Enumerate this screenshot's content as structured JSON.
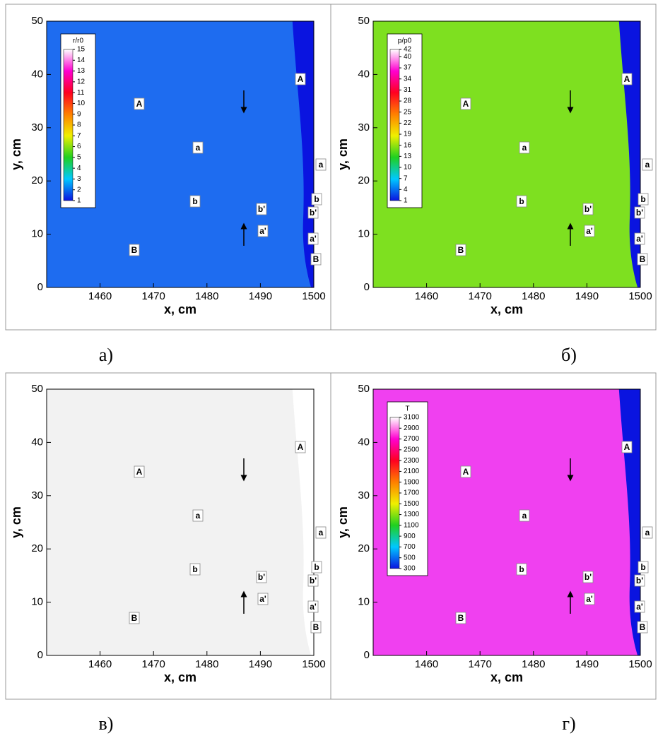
{
  "chart_data": [
    {
      "type": "field",
      "panel_label": "а)",
      "xlabel": "x, cm",
      "ylabel": "y, cm",
      "xlim": [
        1450,
        1500
      ],
      "xticks": [
        1460,
        1470,
        1480,
        1490,
        1500
      ],
      "ylim": [
        0,
        50
      ],
      "yticks": [
        0,
        10,
        20,
        30,
        40,
        50
      ],
      "field_color": "#1e6cf0",
      "boundary_color": "#0a14e0",
      "colorbar": {
        "title": "r/r0",
        "clim": [
          1,
          15
        ],
        "ticks": [
          1,
          2,
          3,
          4,
          5,
          6,
          7,
          8,
          9,
          10,
          11,
          12,
          13,
          14,
          15
        ],
        "colors": [
          "#0a14e0",
          "#00c8ff",
          "#20d020",
          "#f0f000",
          "#ff8000",
          "#ff0020",
          "#ff00d0",
          "#ffffff"
        ]
      },
      "annotations": [
        "A",
        "a",
        "b",
        "b'",
        "a'",
        "B",
        "A",
        "a",
        "b",
        "b'",
        "a'",
        "B"
      ]
    },
    {
      "type": "field",
      "panel_label": "б)",
      "xlabel": "x, cm",
      "ylabel": "y, cm",
      "xlim": [
        1450,
        1500
      ],
      "xticks": [
        1460,
        1470,
        1480,
        1490,
        1500
      ],
      "ylim": [
        0,
        50
      ],
      "yticks": [
        0,
        10,
        20,
        30,
        40,
        50
      ],
      "field_color": "#7ee020",
      "boundary_color": "#0a14e0",
      "colorbar": {
        "title": "p/p0",
        "clim": [
          1,
          42
        ],
        "ticks": [
          1,
          4,
          7,
          10,
          13,
          16,
          19,
          22,
          25,
          28,
          31,
          34,
          37,
          40,
          42
        ],
        "colors": [
          "#0a14e0",
          "#00c8ff",
          "#20d020",
          "#f0f000",
          "#ff8000",
          "#ff0020",
          "#ff00d0",
          "#ffffff"
        ]
      },
      "annotations": [
        "A",
        "a",
        "b",
        "b'",
        "a'",
        "B",
        "A",
        "a",
        "b",
        "b'",
        "a'",
        "B"
      ]
    },
    {
      "type": "field",
      "panel_label": "в)",
      "xlabel": "x, cm",
      "ylabel": "y, cm",
      "xlim": [
        1450,
        1500
      ],
      "xticks": [
        1460,
        1470,
        1480,
        1490,
        1500
      ],
      "ylim": [
        0,
        50
      ],
      "yticks": [
        0,
        10,
        20,
        30,
        40,
        50
      ],
      "field_color": "#f2f2f2",
      "boundary_color": "#ffffff",
      "annotations": [
        "A",
        "a",
        "b",
        "b'",
        "a'",
        "B",
        "A",
        "a",
        "b",
        "b'",
        "a'",
        "B"
      ]
    },
    {
      "type": "field",
      "panel_label": "г)",
      "xlabel": "x, cm",
      "ylabel": "y, cm",
      "xlim": [
        1450,
        1500
      ],
      "xticks": [
        1460,
        1470,
        1480,
        1490,
        1500
      ],
      "ylim": [
        0,
        50
      ],
      "yticks": [
        0,
        10,
        20,
        30,
        40,
        50
      ],
      "field_color": "#f040f0",
      "boundary_color": "#0a14e0",
      "colorbar": {
        "title": "T",
        "clim": [
          300,
          3100
        ],
        "ticks": [
          300,
          500,
          700,
          900,
          1100,
          1300,
          1500,
          1700,
          1900,
          2100,
          2300,
          2500,
          2700,
          2900,
          3100
        ],
        "colors": [
          "#0a14e0",
          "#00c8ff",
          "#20d020",
          "#f0f000",
          "#ff8000",
          "#ff0020",
          "#ff00d0",
          "#ffffff"
        ]
      },
      "annotations": [
        "A",
        "a",
        "b",
        "b'",
        "a'",
        "B",
        "A",
        "a",
        "b",
        "b'",
        "a'",
        "B"
      ]
    }
  ]
}
